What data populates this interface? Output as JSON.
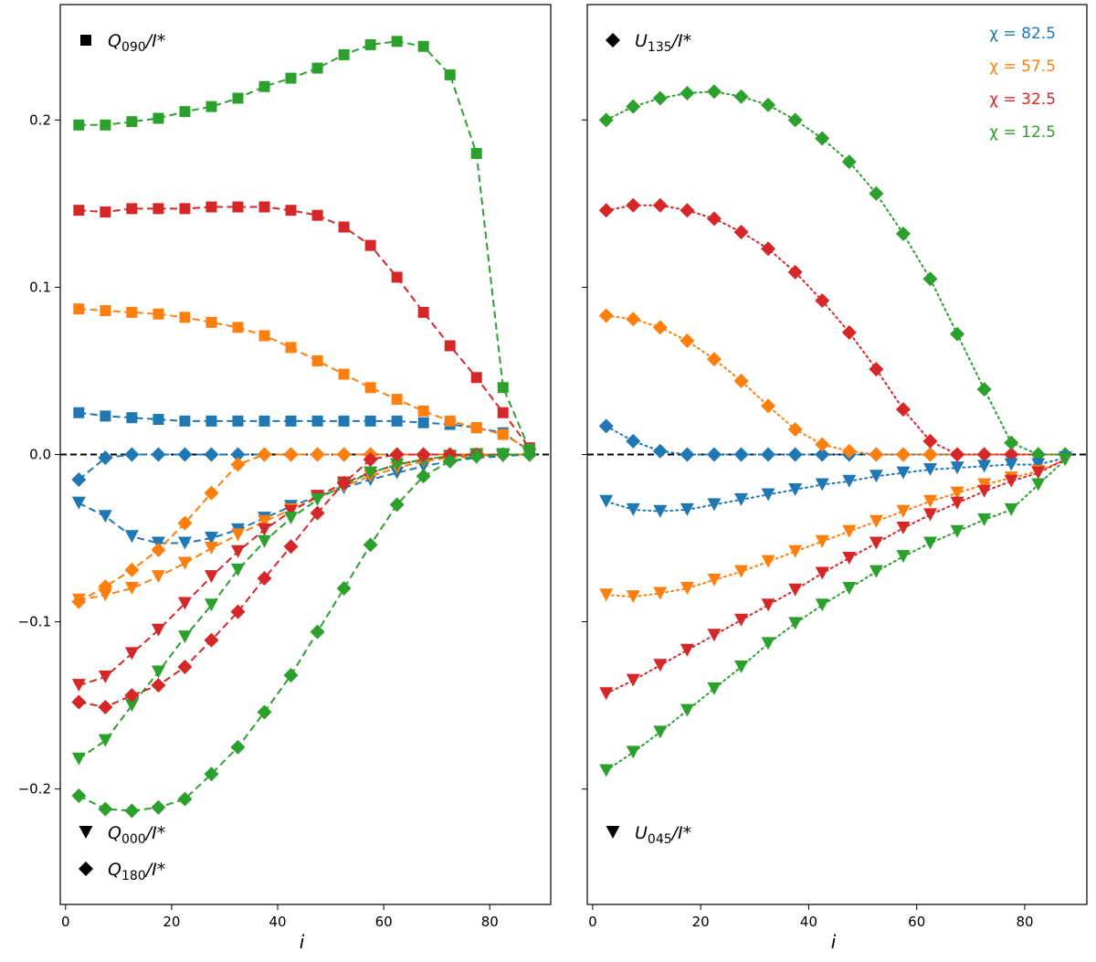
{
  "chart_data": [
    {
      "type": "line",
      "panel": "left",
      "xlabel": "i",
      "ylabel": "",
      "xlim": [
        -1,
        91.5
      ],
      "ylim": [
        -0.269,
        0.269
      ],
      "xticks": [
        0,
        20,
        40,
        60,
        80
      ],
      "yticks": [
        -0.2,
        -0.1,
        0.0,
        0.1,
        0.2
      ],
      "ytick_labels": [
        "−0.2",
        "−0.1",
        "0.0",
        "0.1",
        "0.2"
      ],
      "reference_line": {
        "y": 0.0,
        "style": "dashed",
        "color": "#000000"
      },
      "line_style": "dashed",
      "labels": [
        {
          "id": "q090",
          "marker": "square",
          "base": "Q",
          "sub": "090",
          "tail": "/I*",
          "position": "top-left"
        },
        {
          "id": "q000",
          "marker": "triangle-down",
          "base": "Q",
          "sub": "000",
          "tail": "/I*",
          "position": "bottom-left"
        },
        {
          "id": "q180",
          "marker": "diamond",
          "base": "Q",
          "sub": "180",
          "tail": "/I*",
          "position": "bottom-left"
        }
      ],
      "series": [
        {
          "name": "Q090/I*",
          "chi": 82.5,
          "color": "#1f77b4",
          "marker": "square",
          "x": [
            2.5,
            7.5,
            12.5,
            17.5,
            22.5,
            27.5,
            32.5,
            37.5,
            42.5,
            47.5,
            52.5,
            57.5,
            62.5,
            67.5,
            72.5,
            77.5,
            82.5,
            87.5
          ],
          "y": [
            0.025,
            0.023,
            0.022,
            0.021,
            0.02,
            0.02,
            0.02,
            0.02,
            0.02,
            0.02,
            0.02,
            0.02,
            0.02,
            0.019,
            0.018,
            0.016,
            0.013,
            0.002
          ]
        },
        {
          "name": "Q090/I*",
          "chi": 57.5,
          "color": "#ff7f0e",
          "marker": "square",
          "x": [
            2.5,
            7.5,
            12.5,
            17.5,
            22.5,
            27.5,
            32.5,
            37.5,
            42.5,
            47.5,
            52.5,
            57.5,
            62.5,
            67.5,
            72.5,
            77.5,
            82.5,
            87.5
          ],
          "y": [
            0.087,
            0.086,
            0.085,
            0.084,
            0.082,
            0.079,
            0.076,
            0.071,
            0.064,
            0.056,
            0.048,
            0.04,
            0.033,
            0.026,
            0.02,
            0.016,
            0.012,
            0.003
          ]
        },
        {
          "name": "Q090/I*",
          "chi": 32.5,
          "color": "#d62728",
          "marker": "square",
          "x": [
            2.5,
            7.5,
            12.5,
            17.5,
            22.5,
            27.5,
            32.5,
            37.5,
            42.5,
            47.5,
            52.5,
            57.5,
            62.5,
            67.5,
            72.5,
            77.5,
            82.5,
            87.5
          ],
          "y": [
            0.146,
            0.145,
            0.147,
            0.147,
            0.147,
            0.148,
            0.148,
            0.148,
            0.146,
            0.143,
            0.136,
            0.125,
            0.106,
            0.085,
            0.065,
            0.046,
            0.025,
            0.004
          ]
        },
        {
          "name": "Q090/I*",
          "chi": 12.5,
          "color": "#2ca02c",
          "marker": "square",
          "x": [
            2.5,
            7.5,
            12.5,
            17.5,
            22.5,
            27.5,
            32.5,
            37.5,
            42.5,
            47.5,
            52.5,
            57.5,
            62.5,
            67.5,
            72.5,
            77.5,
            82.5,
            87.5
          ],
          "y": [
            0.197,
            0.197,
            0.199,
            0.201,
            0.205,
            0.208,
            0.213,
            0.22,
            0.225,
            0.231,
            0.239,
            0.245,
            0.247,
            0.244,
            0.227,
            0.18,
            0.04,
            0.003
          ]
        },
        {
          "name": "Q000/I*",
          "chi": 82.5,
          "color": "#1f77b4",
          "marker": "triangle-down",
          "x": [
            2.5,
            7.5,
            12.5,
            17.5,
            22.5,
            27.5,
            32.5,
            37.5,
            42.5,
            47.5,
            52.5,
            57.5,
            62.5,
            67.5,
            72.5,
            77.5,
            82.5,
            87.5
          ],
          "y": [
            -0.029,
            -0.037,
            -0.049,
            -0.053,
            -0.053,
            -0.05,
            -0.045,
            -0.038,
            -0.031,
            -0.025,
            -0.02,
            -0.015,
            -0.011,
            -0.007,
            -0.004,
            -0.002,
            -0.001,
            0.0
          ]
        },
        {
          "name": "Q000/I*",
          "chi": 57.5,
          "color": "#ff7f0e",
          "marker": "triangle-down",
          "x": [
            2.5,
            7.5,
            12.5,
            17.5,
            22.5,
            27.5,
            32.5,
            37.5,
            42.5,
            47.5,
            52.5,
            57.5,
            62.5,
            67.5,
            72.5,
            77.5,
            82.5,
            87.5
          ],
          "y": [
            -0.087,
            -0.084,
            -0.08,
            -0.073,
            -0.065,
            -0.056,
            -0.048,
            -0.04,
            -0.033,
            -0.026,
            -0.019,
            -0.013,
            -0.008,
            -0.004,
            -0.002,
            -0.001,
            0.0,
            0.0
          ]
        },
        {
          "name": "Q000/I*",
          "chi": 32.5,
          "color": "#d62728",
          "marker": "triangle-down",
          "x": [
            2.5,
            7.5,
            12.5,
            17.5,
            22.5,
            27.5,
            32.5,
            37.5,
            42.5,
            47.5,
            52.5,
            57.5,
            62.5,
            67.5,
            72.5,
            77.5,
            82.5,
            87.5
          ],
          "y": [
            -0.138,
            -0.133,
            -0.119,
            -0.105,
            -0.089,
            -0.073,
            -0.058,
            -0.045,
            -0.034,
            -0.025,
            -0.017,
            -0.011,
            -0.006,
            -0.003,
            -0.001,
            0.0,
            0.0,
            0.0
          ]
        },
        {
          "name": "Q000/I*",
          "chi": 12.5,
          "color": "#2ca02c",
          "marker": "triangle-down",
          "x": [
            2.5,
            7.5,
            12.5,
            17.5,
            22.5,
            27.5,
            32.5,
            37.5,
            42.5,
            47.5,
            52.5,
            57.5,
            62.5,
            67.5,
            72.5,
            77.5,
            82.5,
            87.5
          ],
          "y": [
            -0.182,
            -0.171,
            -0.15,
            -0.13,
            -0.109,
            -0.09,
            -0.069,
            -0.052,
            -0.038,
            -0.027,
            -0.018,
            -0.011,
            -0.006,
            -0.003,
            -0.001,
            0.0,
            0.0,
            0.0
          ]
        },
        {
          "name": "Q180/I*",
          "chi": 82.5,
          "color": "#1f77b4",
          "marker": "diamond",
          "x": [
            2.5,
            7.5,
            12.5,
            17.5,
            22.5,
            27.5,
            32.5,
            37.5,
            42.5,
            47.5,
            52.5,
            57.5,
            62.5,
            67.5,
            72.5,
            77.5,
            82.5,
            87.5
          ],
          "y": [
            -0.015,
            -0.002,
            0.0,
            0.0,
            0.0,
            0.0,
            0.0,
            0.0,
            0.0,
            0.0,
            0.0,
            0.0,
            0.0,
            0.0,
            0.0,
            0.0,
            0.0,
            0.0
          ]
        },
        {
          "name": "Q180/I*",
          "chi": 57.5,
          "color": "#ff7f0e",
          "marker": "diamond",
          "x": [
            2.5,
            7.5,
            12.5,
            17.5,
            22.5,
            27.5,
            32.5,
            37.5,
            42.5,
            47.5,
            52.5,
            57.5,
            62.5,
            67.5,
            72.5,
            77.5,
            82.5,
            87.5
          ],
          "y": [
            -0.088,
            -0.079,
            -0.069,
            -0.057,
            -0.041,
            -0.023,
            -0.006,
            0.0,
            0.0,
            0.0,
            0.0,
            0.0,
            0.0,
            0.0,
            0.0,
            0.0,
            0.0,
            0.0
          ]
        },
        {
          "name": "Q180/I*",
          "chi": 32.5,
          "color": "#d62728",
          "marker": "diamond",
          "x": [
            2.5,
            7.5,
            12.5,
            17.5,
            22.5,
            27.5,
            32.5,
            37.5,
            42.5,
            47.5,
            52.5,
            57.5,
            62.5,
            67.5,
            72.5,
            77.5,
            82.5,
            87.5
          ],
          "y": [
            -0.148,
            -0.151,
            -0.144,
            -0.138,
            -0.127,
            -0.111,
            -0.094,
            -0.074,
            -0.055,
            -0.035,
            -0.017,
            -0.003,
            0.0,
            0.0,
            0.0,
            0.0,
            0.0,
            0.0
          ]
        },
        {
          "name": "Q180/I*",
          "chi": 12.5,
          "color": "#2ca02c",
          "marker": "diamond",
          "x": [
            2.5,
            7.5,
            12.5,
            17.5,
            22.5,
            27.5,
            32.5,
            37.5,
            42.5,
            47.5,
            52.5,
            57.5,
            62.5,
            67.5,
            72.5,
            77.5,
            82.5,
            87.5
          ],
          "y": [
            -0.204,
            -0.212,
            -0.213,
            -0.211,
            -0.206,
            -0.191,
            -0.175,
            -0.154,
            -0.132,
            -0.106,
            -0.08,
            -0.054,
            -0.03,
            -0.013,
            -0.004,
            -0.001,
            0.0,
            0.0
          ]
        }
      ]
    },
    {
      "type": "line",
      "panel": "right",
      "xlabel": "i",
      "ylabel": "",
      "xlim": [
        -1,
        91.5
      ],
      "ylim": [
        -0.269,
        0.269
      ],
      "xticks": [
        0,
        20,
        40,
        60,
        80
      ],
      "yticks": [
        -0.2,
        -0.1,
        0.0,
        0.1,
        0.2
      ],
      "reference_line": {
        "y": 0.0,
        "style": "dashed",
        "color": "#000000"
      },
      "line_style": "dotted",
      "labels": [
        {
          "id": "u135",
          "marker": "diamond",
          "base": "U",
          "sub": "135",
          "tail": "/I*",
          "position": "top-left"
        },
        {
          "id": "u045",
          "marker": "triangle-down",
          "base": "U",
          "sub": "045",
          "tail": "/I*",
          "position": "bottom-left"
        }
      ],
      "legend": {
        "position": "top-right",
        "entries": [
          {
            "text": "χ = 82.5",
            "color": "#1f77b4"
          },
          {
            "text": "χ = 57.5",
            "color": "#ff7f0e"
          },
          {
            "text": "χ = 32.5",
            "color": "#d62728"
          },
          {
            "text": "χ = 12.5",
            "color": "#2ca02c"
          }
        ]
      },
      "series": [
        {
          "name": "U135/I*",
          "chi": 82.5,
          "color": "#1f77b4",
          "marker": "diamond",
          "x": [
            2.5,
            7.5,
            12.5,
            17.5,
            22.5,
            27.5,
            32.5,
            37.5,
            42.5,
            47.5,
            52.5,
            57.5,
            62.5,
            67.5,
            72.5,
            77.5,
            82.5,
            87.5
          ],
          "y": [
            0.017,
            0.008,
            0.002,
            0.0,
            0.0,
            0.0,
            0.0,
            0.0,
            0.0,
            0.0,
            0.0,
            0.0,
            0.0,
            0.0,
            0.0,
            0.0,
            0.0,
            0.0
          ]
        },
        {
          "name": "U135/I*",
          "chi": 57.5,
          "color": "#ff7f0e",
          "marker": "diamond",
          "x": [
            2.5,
            7.5,
            12.5,
            17.5,
            22.5,
            27.5,
            32.5,
            37.5,
            42.5,
            47.5,
            52.5,
            57.5,
            62.5,
            67.5,
            72.5,
            77.5,
            82.5,
            87.5
          ],
          "y": [
            0.083,
            0.081,
            0.076,
            0.068,
            0.057,
            0.044,
            0.029,
            0.015,
            0.006,
            0.002,
            0.0,
            0.0,
            0.0,
            0.0,
            0.0,
            0.0,
            0.0,
            0.0
          ]
        },
        {
          "name": "U135/I*",
          "chi": 32.5,
          "color": "#d62728",
          "marker": "diamond",
          "x": [
            2.5,
            7.5,
            12.5,
            17.5,
            22.5,
            27.5,
            32.5,
            37.5,
            42.5,
            47.5,
            52.5,
            57.5,
            62.5,
            67.5,
            72.5,
            77.5,
            82.5,
            87.5
          ],
          "y": [
            0.146,
            0.149,
            0.149,
            0.146,
            0.141,
            0.133,
            0.123,
            0.109,
            0.092,
            0.073,
            0.051,
            0.027,
            0.008,
            0.0,
            0.0,
            0.0,
            0.0,
            0.0
          ]
        },
        {
          "name": "U135/I*",
          "chi": 12.5,
          "color": "#2ca02c",
          "marker": "diamond",
          "x": [
            2.5,
            7.5,
            12.5,
            17.5,
            22.5,
            27.5,
            32.5,
            37.5,
            42.5,
            47.5,
            52.5,
            57.5,
            62.5,
            67.5,
            72.5,
            77.5,
            82.5,
            87.5
          ],
          "y": [
            0.2,
            0.208,
            0.213,
            0.216,
            0.217,
            0.214,
            0.209,
            0.2,
            0.189,
            0.175,
            0.156,
            0.132,
            0.105,
            0.072,
            0.039,
            0.007,
            0.0,
            0.0
          ]
        },
        {
          "name": "U045/I*",
          "chi": 82.5,
          "color": "#1f77b4",
          "marker": "triangle-down",
          "x": [
            2.5,
            7.5,
            12.5,
            17.5,
            22.5,
            27.5,
            32.5,
            37.5,
            42.5,
            47.5,
            52.5,
            57.5,
            62.5,
            67.5,
            72.5,
            77.5,
            82.5,
            87.5
          ],
          "y": [
            -0.028,
            -0.033,
            -0.034,
            -0.033,
            -0.03,
            -0.027,
            -0.024,
            -0.021,
            -0.018,
            -0.016,
            -0.013,
            -0.011,
            -0.009,
            -0.008,
            -0.007,
            -0.006,
            -0.006,
            -0.002
          ]
        },
        {
          "name": "U045/I*",
          "chi": 57.5,
          "color": "#ff7f0e",
          "marker": "triangle-down",
          "x": [
            2.5,
            7.5,
            12.5,
            17.5,
            22.5,
            27.5,
            32.5,
            37.5,
            42.5,
            47.5,
            52.5,
            57.5,
            62.5,
            67.5,
            72.5,
            77.5,
            82.5,
            87.5
          ],
          "y": [
            -0.084,
            -0.085,
            -0.083,
            -0.08,
            -0.075,
            -0.07,
            -0.064,
            -0.058,
            -0.052,
            -0.046,
            -0.04,
            -0.034,
            -0.028,
            -0.023,
            -0.018,
            -0.014,
            -0.01,
            -0.003
          ]
        },
        {
          "name": "U045/I*",
          "chi": 32.5,
          "color": "#d62728",
          "marker": "triangle-down",
          "x": [
            2.5,
            7.5,
            12.5,
            17.5,
            22.5,
            27.5,
            32.5,
            37.5,
            42.5,
            47.5,
            52.5,
            57.5,
            62.5,
            67.5,
            72.5,
            77.5,
            82.5,
            87.5
          ],
          "y": [
            -0.143,
            -0.135,
            -0.126,
            -0.117,
            -0.108,
            -0.099,
            -0.09,
            -0.081,
            -0.071,
            -0.062,
            -0.053,
            -0.044,
            -0.036,
            -0.029,
            -0.022,
            -0.016,
            -0.011,
            -0.003
          ]
        },
        {
          "name": "U045/I*",
          "chi": 12.5,
          "color": "#2ca02c",
          "marker": "triangle-down",
          "x": [
            2.5,
            7.5,
            12.5,
            17.5,
            22.5,
            27.5,
            32.5,
            37.5,
            42.5,
            47.5,
            52.5,
            57.5,
            62.5,
            67.5,
            72.5,
            77.5,
            82.5,
            87.5
          ],
          "y": [
            -0.189,
            -0.178,
            -0.166,
            -0.153,
            -0.14,
            -0.127,
            -0.113,
            -0.101,
            -0.09,
            -0.08,
            -0.07,
            -0.061,
            -0.053,
            -0.046,
            -0.039,
            -0.033,
            -0.018,
            -0.003
          ]
        }
      ]
    }
  ]
}
